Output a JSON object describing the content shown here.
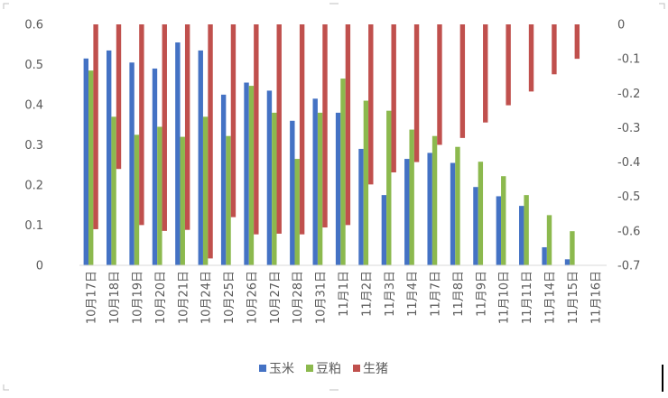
{
  "chart_data": {
    "type": "bar",
    "categories": [
      "10月17日",
      "10月18日",
      "10月19日",
      "10月20日",
      "10月21日",
      "10月24日",
      "10月25日",
      "10月26日",
      "10月27日",
      "10月28日",
      "10月31日",
      "11月1日",
      "11月2日",
      "11月3日",
      "11月4日",
      "11月7日",
      "11月8日",
      "11月9日",
      "11月10日",
      "11月11日",
      "11月14日",
      "11月15日",
      "11月16日"
    ],
    "series": [
      {
        "name": "玉米",
        "axis": "left",
        "color": "#4472C4",
        "values": [
          0.515,
          0.535,
          0.505,
          0.49,
          0.555,
          0.535,
          0.425,
          0.455,
          0.435,
          0.36,
          0.415,
          0.38,
          0.29,
          0.175,
          0.265,
          0.28,
          0.255,
          0.195,
          0.172,
          0.148,
          0.045,
          0.015,
          null
        ]
      },
      {
        "name": "豆粕",
        "axis": "left",
        "color": "#8CB94E",
        "values": [
          0.485,
          0.37,
          0.325,
          0.345,
          0.32,
          0.37,
          0.322,
          0.447,
          0.38,
          0.265,
          0.38,
          0.465,
          0.41,
          0.385,
          0.338,
          0.322,
          0.295,
          0.258,
          0.222,
          0.175,
          0.125,
          0.085,
          null
        ]
      },
      {
        "name": "生猪",
        "axis": "right",
        "color": "#C0504D",
        "values": [
          -0.595,
          -0.42,
          -0.583,
          -0.6,
          -0.597,
          -0.68,
          -0.56,
          -0.61,
          -0.608,
          -0.61,
          -0.59,
          -0.583,
          -0.465,
          -0.43,
          -0.4,
          -0.35,
          -0.33,
          -0.285,
          -0.235,
          -0.195,
          -0.145,
          -0.1,
          null
        ]
      }
    ],
    "y_left": {
      "min": 0,
      "max": 0.6,
      "step": 0.1,
      "tick_labels": [
        "0",
        "0.1",
        "0.2",
        "0.3",
        "0.4",
        "0.5",
        "0.6"
      ]
    },
    "y_right": {
      "min": -0.7,
      "max": 0,
      "step": 0.1,
      "tick_labels": [
        "-0.7",
        "-0.6",
        "-0.5",
        "-0.4",
        "-0.3",
        "-0.2",
        "-0.1",
        "0"
      ]
    },
    "grid": false,
    "legend_position": "bottom"
  }
}
